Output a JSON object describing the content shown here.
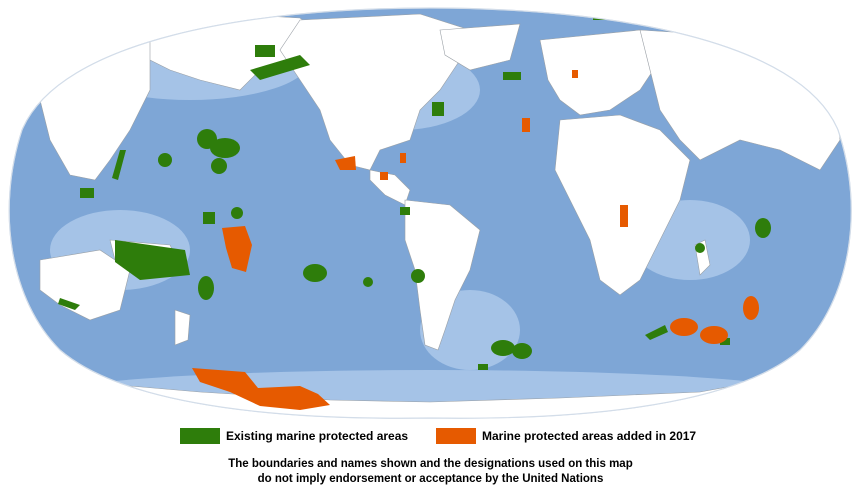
{
  "colors": {
    "ocean": "#7ea6d6",
    "ocean_shallow": "#a9c6e8",
    "land": "#ffffff",
    "border": "#9aa0a6",
    "existing": "#2e7d0b",
    "added": "#e65a00"
  },
  "legend": {
    "existing_label": "Existing marine protected areas",
    "added_label": "Marine protected areas added in 2017"
  },
  "disclaimer": {
    "line1": "The boundaries and names shown and the designations used on this map",
    "line2": "do not imply endorsement or acceptance by the United Nations"
  },
  "map": {
    "projection": "robinson-like world map centered on the Pacific",
    "features": {
      "existing_count_shown": "many",
      "added_regions": [
        "Mexico Pacific",
        "Caribbean",
        "Central Pacific",
        "Antarctic Ross Sea",
        "West Africa",
        "Southern Indian Ocean",
        "North Atlantic"
      ]
    }
  }
}
